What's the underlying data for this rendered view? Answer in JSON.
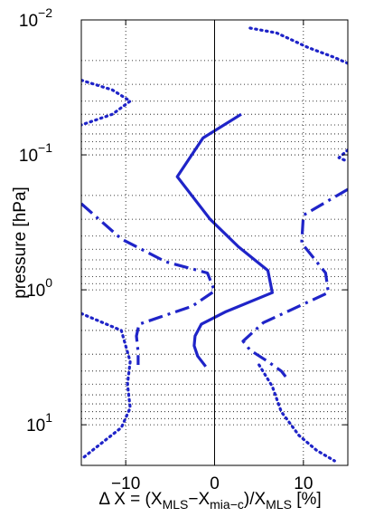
{
  "chart_data": {
    "type": "line",
    "xlabel_parts": {
      "prefix": "Δ X = (X",
      "sub1": "MLS",
      "mid": "−X",
      "sub2": "mia−c",
      "mid2": ")/X",
      "sub3": "MLS",
      "suffix": " [%]"
    },
    "ylabel": "pressure [hPa]",
    "xlim": [
      -15,
      15
    ],
    "ylim": [
      20,
      0.01
    ],
    "yscale": "log",
    "x_ticks": [
      {
        "value": -10,
        "label": "−10"
      },
      {
        "value": 0,
        "label": "0"
      },
      {
        "value": 10,
        "label": "10"
      }
    ],
    "y_ticks": [
      {
        "value": 0.01,
        "base": "10",
        "exp": "−2"
      },
      {
        "value": 0.1,
        "base": "10",
        "exp": "−1"
      },
      {
        "value": 1,
        "base": "10",
        "exp": "0"
      },
      {
        "value": 10,
        "base": "10",
        "exp": "1"
      }
    ],
    "grid": true,
    "series": [
      {
        "style": "solid",
        "color": "#1f24c8",
        "points": [
          [
            3,
            0.05
          ],
          [
            -1.3,
            0.075
          ],
          [
            -4.2,
            0.145
          ],
          [
            -0.5,
            0.3
          ],
          [
            2.7,
            0.48
          ],
          [
            6.0,
            0.72
          ],
          [
            6.5,
            1.05
          ],
          [
            1.3,
            1.45
          ],
          [
            -1.5,
            1.8
          ],
          [
            -2.2,
            2.2
          ],
          [
            -2.3,
            2.6
          ],
          [
            -1.9,
            3.1
          ],
          [
            -1.0,
            3.7
          ]
        ]
      },
      {
        "style": "dashdot",
        "color": "#1f24c8",
        "points": [
          [
            -15,
            0.23
          ],
          [
            -10.5,
            0.42
          ],
          [
            -5.5,
            0.62
          ],
          [
            -0.8,
            0.75
          ],
          [
            0,
            1.02
          ],
          [
            -2.5,
            1.32
          ],
          [
            -8.5,
            1.8
          ],
          [
            -8.8,
            2.2
          ],
          [
            -8.6,
            2.9
          ],
          [
            -8.6,
            3.6
          ]
        ]
      },
      {
        "style": "dashdot",
        "color": "#1f24c8",
        "points": [
          [
            15,
            0.18
          ],
          [
            10,
            0.28
          ],
          [
            9.8,
            0.45
          ],
          [
            12.5,
            0.75
          ],
          [
            12.8,
            1.05
          ],
          [
            5.5,
            1.75
          ],
          [
            3.2,
            2.4
          ],
          [
            4.0,
            2.8
          ],
          [
            6.0,
            3.4
          ],
          [
            7.5,
            4.0
          ],
          [
            8.0,
            4.4
          ]
        ]
      },
      {
        "style": "dotted",
        "color": "#1f24c8",
        "points": [
          [
            -15,
            0.028
          ],
          [
            -11.5,
            0.033
          ],
          [
            -9.5,
            0.04
          ],
          [
            -11.5,
            0.05
          ],
          [
            -15,
            0.06
          ]
        ]
      },
      {
        "style": "dotted",
        "color": "#1f24c8",
        "points": [
          [
            -15,
            1.5
          ],
          [
            -10.5,
            2.0
          ],
          [
            -9.5,
            3.4
          ],
          [
            -9.8,
            5.0
          ],
          [
            -9.5,
            7.5
          ],
          [
            -10.5,
            10.5
          ],
          [
            -13.5,
            15
          ],
          [
            -15,
            18
          ]
        ]
      },
      {
        "style": "dotted",
        "color": "#1f24c8",
        "points": [
          [
            4,
            0.0115
          ],
          [
            7,
            0.0125
          ],
          [
            10.5,
            0.016
          ],
          [
            13.5,
            0.019
          ],
          [
            15,
            0.021
          ]
        ]
      },
      {
        "style": "dotted",
        "color": "#1f24c8",
        "points": [
          [
            15,
            0.092
          ],
          [
            14,
            0.105
          ],
          [
            15,
            0.112
          ]
        ]
      },
      {
        "style": "dotted",
        "color": "#1f24c8",
        "points": [
          [
            5,
            3.6
          ],
          [
            6.5,
            5.2
          ],
          [
            7.5,
            8
          ],
          [
            9.5,
            12
          ],
          [
            11.5,
            15.5
          ],
          [
            13.5,
            18.5
          ]
        ]
      }
    ]
  }
}
